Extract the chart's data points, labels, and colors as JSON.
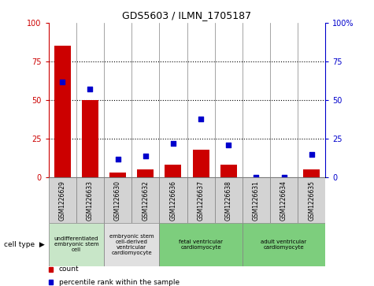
{
  "title": "GDS5603 / ILMN_1705187",
  "samples": [
    "GSM1226629",
    "GSM1226633",
    "GSM1226630",
    "GSM1226632",
    "GSM1226636",
    "GSM1226637",
    "GSM1226638",
    "GSM1226631",
    "GSM1226634",
    "GSM1226635"
  ],
  "counts": [
    85,
    50,
    3,
    5,
    8,
    18,
    8,
    0,
    0,
    5
  ],
  "percentiles": [
    62,
    57,
    12,
    14,
    22,
    38,
    21,
    0,
    0,
    15
  ],
  "cell_types": [
    {
      "label": "undifferentiated\nembryonic stem\ncell",
      "start": 0,
      "end": 2,
      "color": "#c8e6c8"
    },
    {
      "label": "embryonic stem\ncell-derived\nventricular\ncardiomyocyte",
      "start": 2,
      "end": 4,
      "color": "#e0e0e0"
    },
    {
      "label": "fetal ventricular\ncardiomyocyte",
      "start": 4,
      "end": 7,
      "color": "#7dce7d"
    },
    {
      "label": "adult ventricular\ncardiomyocyte",
      "start": 7,
      "end": 10,
      "color": "#7dce7d"
    }
  ],
  "bar_color": "#cc0000",
  "dot_color": "#0000cc",
  "grid_color": "black",
  "ylim": [
    0,
    100
  ],
  "yticks": [
    0,
    25,
    50,
    75,
    100
  ],
  "sample_bg_color": "#d3d3d3",
  "legend_items": [
    {
      "label": "count",
      "color": "#cc0000"
    },
    {
      "label": "percentile rank within the sample",
      "color": "#0000cc"
    }
  ]
}
